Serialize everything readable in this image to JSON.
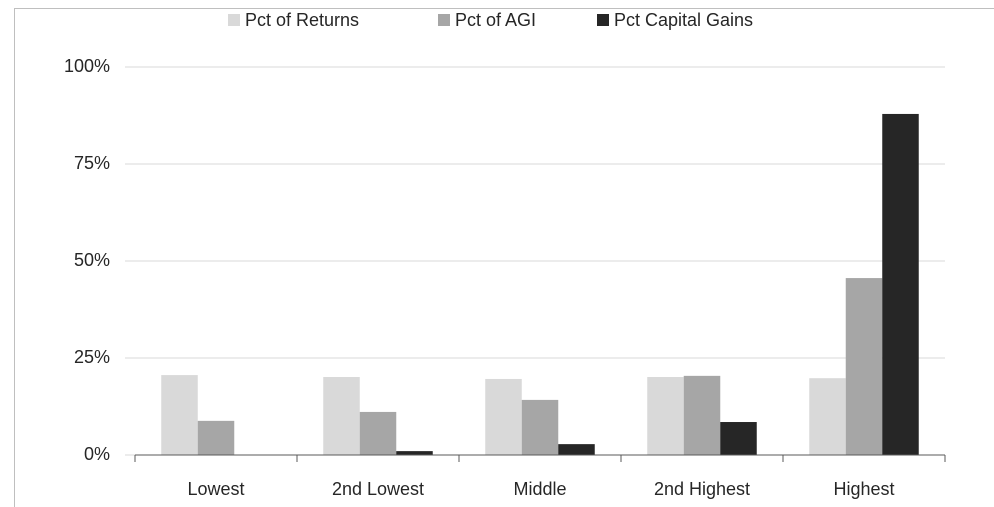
{
  "chart_data": {
    "type": "bar",
    "categories": [
      "Lowest",
      "2nd Lowest",
      "Middle",
      "2nd Highest",
      "Highest"
    ],
    "series": [
      {
        "name": "Pct of Returns",
        "color": "#d9d9d9",
        "values": [
          20.6,
          20.1,
          19.6,
          20.1,
          19.8
        ]
      },
      {
        "name": "Pct of AGI",
        "color": "#a6a6a6",
        "values": [
          8.8,
          11.1,
          14.2,
          20.4,
          45.6
        ]
      },
      {
        "name": "Pct Capital Gains",
        "color": "#262626",
        "values": [
          0,
          1.0,
          2.8,
          8.5,
          87.9
        ]
      }
    ],
    "ylim": [
      0,
      100
    ],
    "yticks": [
      {
        "value": 0,
        "label": "0%"
      },
      {
        "value": 25,
        "label": "25%"
      },
      {
        "value": 50,
        "label": "50%"
      },
      {
        "value": 75,
        "label": "75%"
      },
      {
        "value": 100,
        "label": "100%"
      }
    ],
    "grid": true,
    "legend": "top"
  }
}
